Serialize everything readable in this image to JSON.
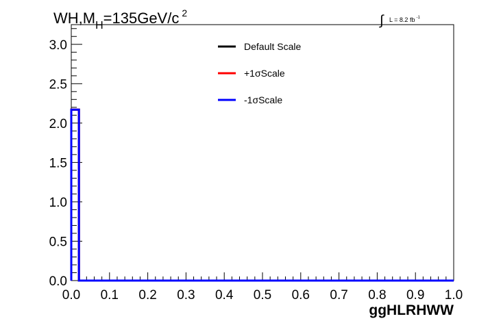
{
  "chart_data": {
    "type": "line",
    "title_parts": {
      "main": "WH,M",
      "sub": "H",
      "rest": "=135GeV/c",
      "sup": "2"
    },
    "lumi": {
      "label": "L = 8.2 fb",
      "sup": "-1",
      "integral_symbol": "∫"
    },
    "xlabel": "ggHLRHWW",
    "ylabel": "",
    "xlim": [
      0.0,
      1.0
    ],
    "ylim": [
      0.0,
      3.25
    ],
    "x_ticks": [
      "0.0",
      "0.1",
      "0.2",
      "0.3",
      "0.4",
      "0.5",
      "0.6",
      "0.7",
      "0.8",
      "0.9",
      "1.0"
    ],
    "y_ticks": [
      "0.0",
      "0.5",
      "1.0",
      "1.5",
      "2.0",
      "2.5",
      "3.0"
    ],
    "bin_edges": [
      0.0,
      0.02,
      1.0
    ],
    "legend_position": "top-center",
    "series": [
      {
        "name": "Default Scale",
        "color": "#000000",
        "values": [
          2.17,
          0.0
        ]
      },
      {
        "name": "+1σScale",
        "color": "#ff0000",
        "values": [
          2.17,
          0.0
        ]
      },
      {
        "name": "-1σScale",
        "color": "#0000ff",
        "values": [
          2.17,
          0.0
        ]
      }
    ],
    "grid": false
  }
}
